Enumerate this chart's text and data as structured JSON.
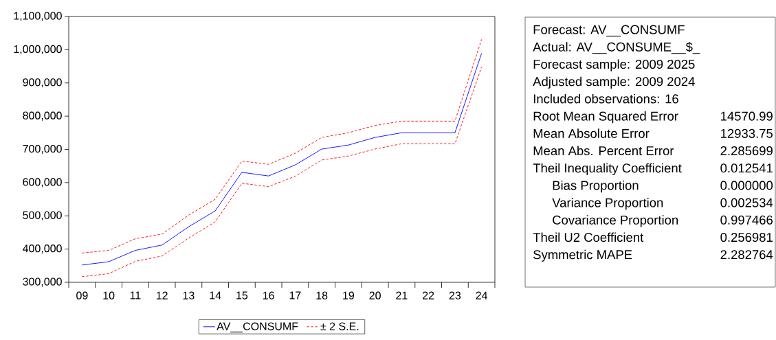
{
  "chart_data": {
    "type": "line",
    "categories": [
      "09",
      "10",
      "11",
      "12",
      "13",
      "14",
      "15",
      "16",
      "17",
      "18",
      "19",
      "20",
      "21",
      "22",
      "23",
      "24"
    ],
    "series": [
      {
        "name": "AV__CONSUMF",
        "color": "#0000ff",
        "line_style": "solid",
        "values": [
          352000,
          362000,
          396000,
          412000,
          467000,
          515000,
          631000,
          620000,
          653000,
          701000,
          713000,
          736000,
          750000,
          750000,
          750000,
          989000
        ]
      },
      {
        "name": "± 2 S.E.",
        "color": "#ff0000",
        "line_style": "dashed",
        "values": [
          388000,
          396000,
          431000,
          445000,
          502000,
          550000,
          665000,
          655000,
          688000,
          736000,
          750000,
          772000,
          785000,
          785000,
          785000,
          1031000
        ]
      },
      {
        "color": "#ff0000",
        "line_style": "dashed",
        "values": [
          317000,
          326000,
          363000,
          379000,
          433000,
          482000,
          598000,
          588000,
          619000,
          668000,
          680000,
          701000,
          717000,
          717000,
          717000,
          948000
        ]
      }
    ],
    "ylim": [
      300000,
      1100000
    ],
    "yticks": [
      {
        "value": 300000,
        "label": "300,000"
      },
      {
        "value": 400000,
        "label": "400,000"
      },
      {
        "value": 500000,
        "label": "500,000"
      },
      {
        "value": 600000,
        "label": "600,000"
      },
      {
        "value": 700000,
        "label": "700,000"
      },
      {
        "value": 800000,
        "label": "800,000"
      },
      {
        "value": 900000,
        "label": "900,000"
      },
      {
        "value": 1000000,
        "label": "1,000,000"
      },
      {
        "value": 1100000,
        "label": "1,100,000"
      }
    ],
    "grid": false,
    "legend": "bottom",
    "annotations": [
      "Forecast: AV__CONSUMF",
      "Actual: AV__CONSUME__$_",
      "Forecast sample: 2009 2025",
      "Adjusted sample: 2009 2024",
      "Included observations: 16",
      "Root Mean Squared Error",
      "14570.99",
      "Mean Absolute Error",
      "12933.75",
      "Mean Abs. Percent Error",
      "2.285699",
      "Theil Inequality Coefficient",
      "0.012541",
      "Bias Proportion",
      "0.000000",
      "Variance Proportion",
      "0.002534",
      "Covariance Proportion",
      "0.997466",
      "Theil U2 Coefficient",
      "0.256981",
      "Symmetric MAPE",
      "2.282764"
    ]
  }
}
